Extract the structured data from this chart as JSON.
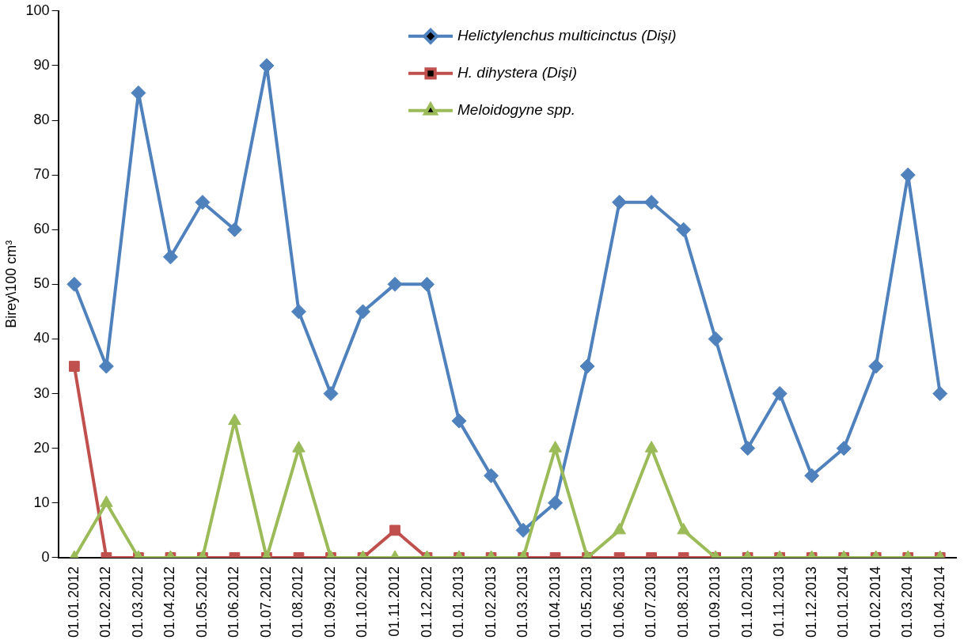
{
  "chart_data": {
    "type": "line",
    "ylabel": "Birey\\100 cm³",
    "categories": [
      "01.01.2012",
      "01.02.2012",
      "01.03.2012",
      "01.04.2012",
      "01.05.2012",
      "01.06.2012",
      "01.07.2012",
      "01.08.2012",
      "01.09.2012",
      "01.10.2012",
      "01.11.2012",
      "01.12.2012",
      "01.01.2013",
      "01.02.2013",
      "01.03.2013",
      "01.04.2013",
      "01.05.2013",
      "01.06.2013",
      "01.07.2013",
      "01.08.2013",
      "01.09.2013",
      "01.10.2013",
      "01.11.2013",
      "01.12.2013",
      "01.01.2014",
      "01.02.2014",
      "01.03.2014",
      "01.04.2014"
    ],
    "series": [
      {
        "name": "Helictylenchus multicinctus (Dişi)",
        "color": "#4f81bd",
        "marker": "diamond",
        "values": [
          50,
          35,
          85,
          55,
          65,
          60,
          90,
          45,
          30,
          45,
          50,
          50,
          25,
          15,
          5,
          10,
          35,
          65,
          65,
          60,
          40,
          20,
          30,
          15,
          20,
          35,
          70,
          30
        ]
      },
      {
        "name": "H. dihystera (Dişi)",
        "color": "#c0504d",
        "marker": "square",
        "values": [
          35,
          0,
          0,
          0,
          0,
          0,
          0,
          0,
          0,
          0,
          5,
          0,
          0,
          0,
          0,
          0,
          0,
          0,
          0,
          0,
          0,
          0,
          0,
          0,
          0,
          0,
          0,
          0
        ]
      },
      {
        "name": "Meloidogyne spp.",
        "color": "#9bbb59",
        "marker": "triangle",
        "values": [
          0,
          10,
          0,
          0,
          0,
          25,
          0,
          20,
          0,
          0,
          0,
          0,
          0,
          0,
          0,
          20,
          0,
          5,
          20,
          5,
          0,
          0,
          0,
          0,
          0,
          0,
          0,
          0
        ]
      }
    ],
    "ylim": [
      0,
      100
    ],
    "yticks": [
      0,
      10,
      20,
      30,
      40,
      50,
      60,
      70,
      80,
      90,
      100
    ],
    "grid": false,
    "legend": "top",
    "line_style": "solid"
  }
}
